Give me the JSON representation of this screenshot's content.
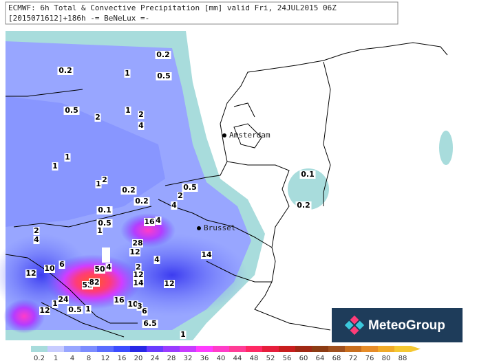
{
  "header": {
    "title": "ECMWF: 6h Total & Convective Precipitation [mm] valid Fri, 24JUL2015 06Z",
    "subtitle": "[2015071612]+186h -= BeNeLux =-"
  },
  "cities": [
    "Amsterdam",
    "Brussel"
  ],
  "contour_labels": [
    "0.2",
    "0.2",
    "1",
    "0.5",
    "0.5",
    "2",
    "1",
    "2",
    "4",
    "1",
    "1",
    "2",
    "1",
    "0.2",
    "0.2",
    "2",
    "0.5",
    "4",
    "0.1",
    "0.5",
    "1",
    "16",
    "4",
    "2",
    "4",
    "28",
    "12",
    "4",
    "14",
    "12",
    "10",
    "6",
    "50",
    "4",
    "2",
    "12",
    "14",
    "12",
    "52",
    "82",
    "24",
    "1",
    "0.5",
    "1",
    "16",
    "10",
    "3",
    "12",
    "6",
    "6.5",
    "1",
    "0.1",
    "0.2"
  ],
  "colorbar_labels": [
    "0.2",
    "1",
    "4",
    "8",
    "12",
    "16",
    "20",
    "24",
    "28",
    "32",
    "36",
    "40",
    "44",
    "48",
    "52",
    "56",
    "60",
    "64",
    "68",
    "72",
    "76",
    "80",
    "88"
  ],
  "logo": "MeteoGroup"
}
